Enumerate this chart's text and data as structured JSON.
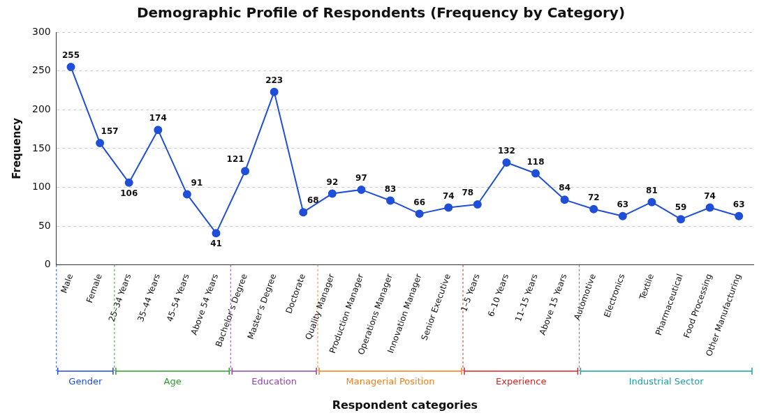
{
  "chart_data": {
    "type": "line",
    "title": "Demographic Profile of Respondents (Frequency by Category)",
    "xlabel": "Respondent categories",
    "ylabel": "Frequency",
    "categories": [
      "Male",
      "Female",
      "25–34 Years",
      "35–44 Years",
      "45–54 Years",
      "Above 54 Years",
      "Bachelor’s Degree",
      "Master’s Degree",
      "Doctorate",
      "Quality Manager",
      "Production Manager",
      "Operations Manager",
      "Innovation Manager",
      "Senior Executive",
      "1–5 Years",
      "6–10 Years",
      "11–15 Years",
      "Above 15 Years",
      "Automotive",
      "Electronics",
      "Textile",
      "Pharmaceutical",
      "Food Processing",
      "Other Manufacturing"
    ],
    "values": [
      255,
      157,
      106,
      174,
      91,
      41,
      121,
      223,
      68,
      92,
      97,
      83,
      66,
      74,
      78,
      132,
      118,
      84,
      72,
      63,
      81,
      59,
      74,
      63
    ],
    "color": "#1f4fd8",
    "marker": "circle",
    "data_labels": true,
    "grid": "y",
    "legend": false,
    "ylim": [
      0,
      300
    ],
    "yticks": [
      0,
      50,
      100,
      150,
      200,
      250,
      300
    ],
    "annotations": [
      "Gender",
      "Age",
      "Education",
      "Managerial Position",
      "Experience",
      "Industrial Sector"
    ]
  }
}
